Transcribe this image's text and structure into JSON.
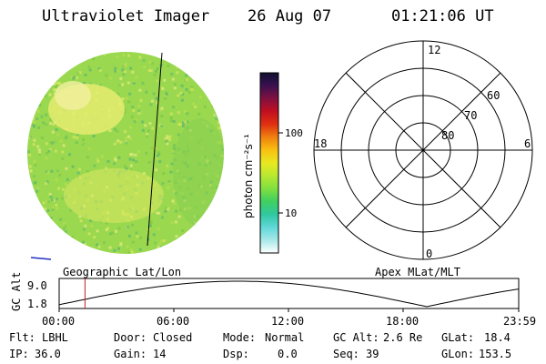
{
  "header": {
    "instrument": "Ultraviolet Imager",
    "date": "26 Aug 07",
    "time": "01:21:06 UT"
  },
  "colorbar": {
    "unit_label": "photon cm⁻²s⁻¹",
    "ticks": [
      "100",
      "10"
    ],
    "colors": [
      "#101030",
      "#3a1050",
      "#801040",
      "#c01020",
      "#e03010",
      "#f08010",
      "#f8c010",
      "#e8e820",
      "#b8e830",
      "#80e040",
      "#40d060",
      "#30c8a0",
      "#60d8d8",
      "#a8e8e8",
      "#ffffff"
    ]
  },
  "polar_plot": {
    "label_top": "12",
    "label_left": "18",
    "label_right": "6",
    "label_bottom": "0",
    "lat_labels": [
      "60",
      "70",
      "80"
    ],
    "caption": "Apex MLat/MLT"
  },
  "image_panel": {
    "caption": "Geographic Lat/Lon"
  },
  "timeline": {
    "y_axis_label": "GC Alt",
    "y_ticks": [
      "9.0",
      "1.8"
    ],
    "x_ticks": [
      "00:00",
      "06:00",
      "12:00",
      "18:00",
      "23:59"
    ],
    "marker_time": "01:21"
  },
  "status": {
    "filter_label": "Flt:",
    "filter_value": "LBHL",
    "ip_label": "IP:",
    "ip_value": "36.0",
    "door_label": "Door:",
    "door_value": "Closed",
    "gain_label": "Gain:",
    "gain_value": "14",
    "mode_label": "Mode:",
    "mode_value": "Normal",
    "dsp_label": "Dsp:",
    "dsp_value": "0.0",
    "gcalt_label": "GC Alt:",
    "gcalt_value": "2.6 Re",
    "seq_label": "Seq:",
    "seq_value": "39",
    "glat_label": "GLat:",
    "glat_value": "18.4",
    "glon_label": "GLon:",
    "glon_value": "153.5"
  }
}
